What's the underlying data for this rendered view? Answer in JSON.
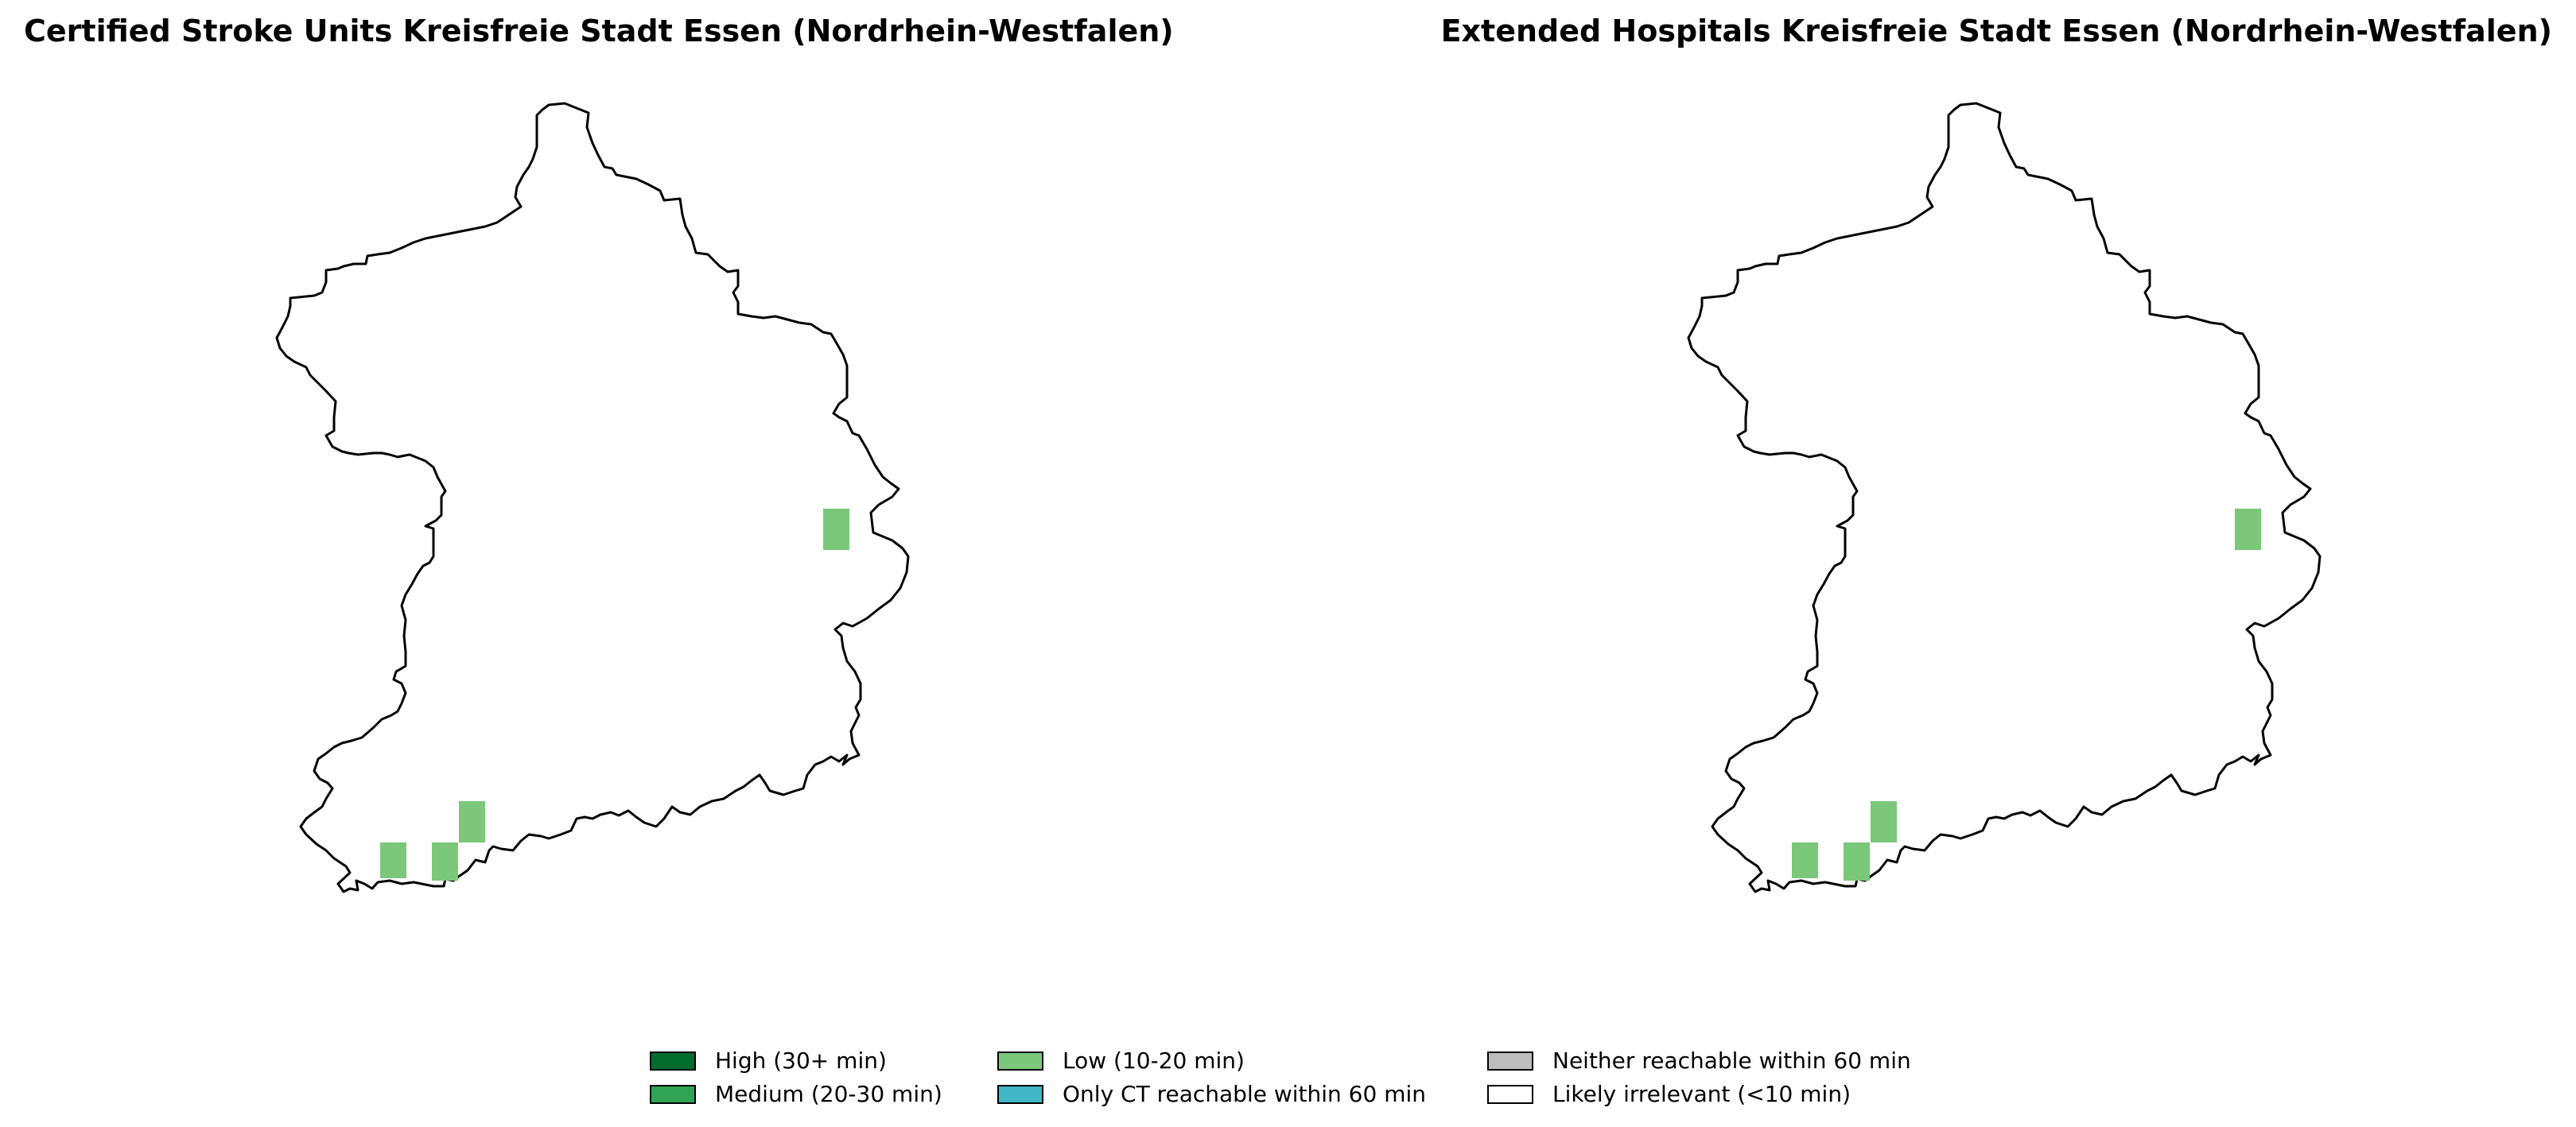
{
  "panels": [
    {
      "title": "Certified Stroke Units Kreisfreie Stadt Essen (Nordrhein-Westfalen)",
      "cells": [
        {
          "class": "low"
        },
        {
          "class": "low"
        },
        {
          "class": "low"
        },
        {
          "class": "low"
        }
      ]
    },
    {
      "title": "Extended Hospitals Kreisfreie Stadt Essen (Nordrhein-Westfalen)",
      "cells": [
        {
          "class": "low"
        },
        {
          "class": "low"
        },
        {
          "class": "low"
        },
        {
          "class": "low"
        }
      ]
    }
  ],
  "legend": [
    {
      "key": "high",
      "label": "High (30+ min)",
      "color": "#006d2c"
    },
    {
      "key": "medium",
      "label": "Medium (20-30 min)",
      "color": "#31a354"
    },
    {
      "key": "low",
      "label": "Low (10-20 min)",
      "color": "#7bc87a"
    },
    {
      "key": "ct_only",
      "label": "Only CT reachable within 60 min",
      "color": "#41b6c4"
    },
    {
      "key": "neither",
      "label": "Neither reachable within 60 min",
      "color": "#bdbdbd"
    },
    {
      "key": "irrelevant",
      "label": "Likely irrelevant (<10 min)",
      "color": "#ffffff"
    }
  ]
}
